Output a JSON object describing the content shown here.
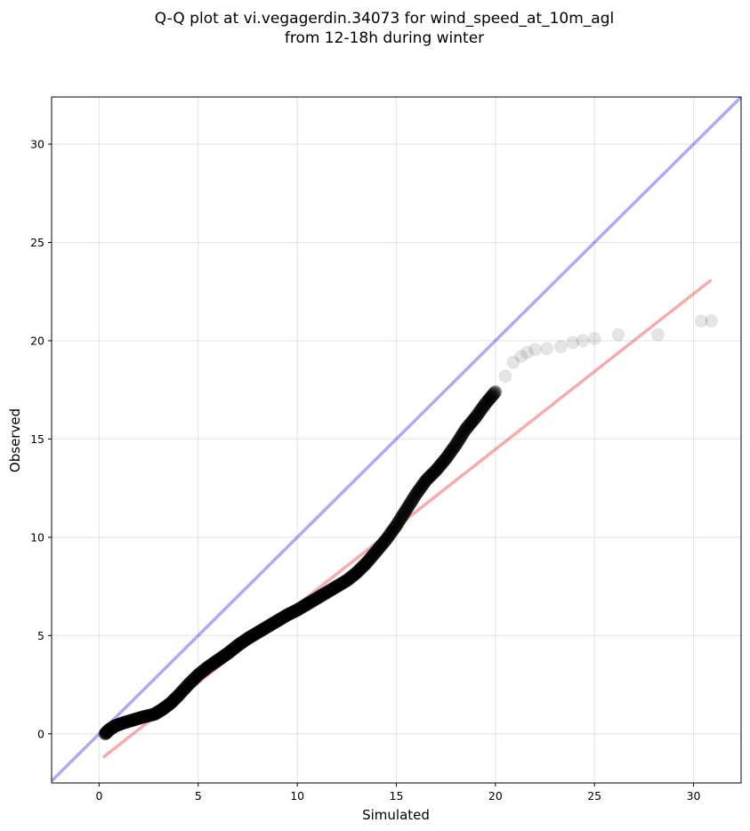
{
  "chart_data": {
    "type": "scatter",
    "title_lines": [
      "Q-Q plot at vi.vegagerdin.34073 for wind_speed_at_10m_agl",
      "from 12-18h during winter"
    ],
    "xlabel": "Simulated",
    "ylabel": "Observed",
    "xlim": [
      -2.4,
      32.4
    ],
    "ylim": [
      -2.5,
      32.4
    ],
    "xticks": [
      0,
      5,
      10,
      15,
      20,
      25,
      30
    ],
    "yticks": [
      0,
      5,
      10,
      15,
      20,
      25,
      30
    ],
    "grid": true,
    "reference_line": {
      "color": "#0000ee",
      "x": [
        -2.4,
        32.4
      ],
      "y": [
        -2.4,
        32.4
      ]
    },
    "fit_line": {
      "color": "#ee0000",
      "x": [
        0.2,
        30.9
      ],
      "y": [
        -1.2,
        23.1
      ]
    },
    "quantiles": {
      "x": [
        0.3,
        0.5,
        0.8,
        1.2,
        1.7,
        2.2,
        2.8,
        3.2,
        3.6,
        4.0,
        4.5,
        5.0,
        5.5,
        6.0,
        6.5,
        7.0,
        7.5,
        8.0,
        8.5,
        9.0,
        9.5,
        10.0,
        10.5,
        11.0,
        11.5,
        12.0,
        12.5,
        13.0,
        13.5,
        14.0,
        14.5,
        15.0,
        15.5,
        16.0,
        16.5,
        17.0,
        17.5,
        18.0,
        18.5,
        19.0,
        19.5,
        20.0,
        20.5,
        20.9,
        21.3,
        21.6,
        22.0,
        22.6,
        23.3,
        23.9,
        24.4,
        25.0,
        26.2,
        28.2,
        30.4,
        30.9
      ],
      "y": [
        0.0,
        0.2,
        0.4,
        0.55,
        0.7,
        0.85,
        1.0,
        1.25,
        1.55,
        1.95,
        2.5,
        3.0,
        3.4,
        3.75,
        4.1,
        4.5,
        4.85,
        5.15,
        5.45,
        5.75,
        6.05,
        6.3,
        6.6,
        6.9,
        7.2,
        7.5,
        7.8,
        8.2,
        8.7,
        9.3,
        9.9,
        10.6,
        11.4,
        12.2,
        12.9,
        13.4,
        14.0,
        14.7,
        15.5,
        16.1,
        16.8,
        17.4,
        18.2,
        18.9,
        19.2,
        19.4,
        19.55,
        19.6,
        19.7,
        19.9,
        20.0,
        20.1,
        20.3,
        20.3,
        21.0,
        21.0
      ]
    }
  }
}
